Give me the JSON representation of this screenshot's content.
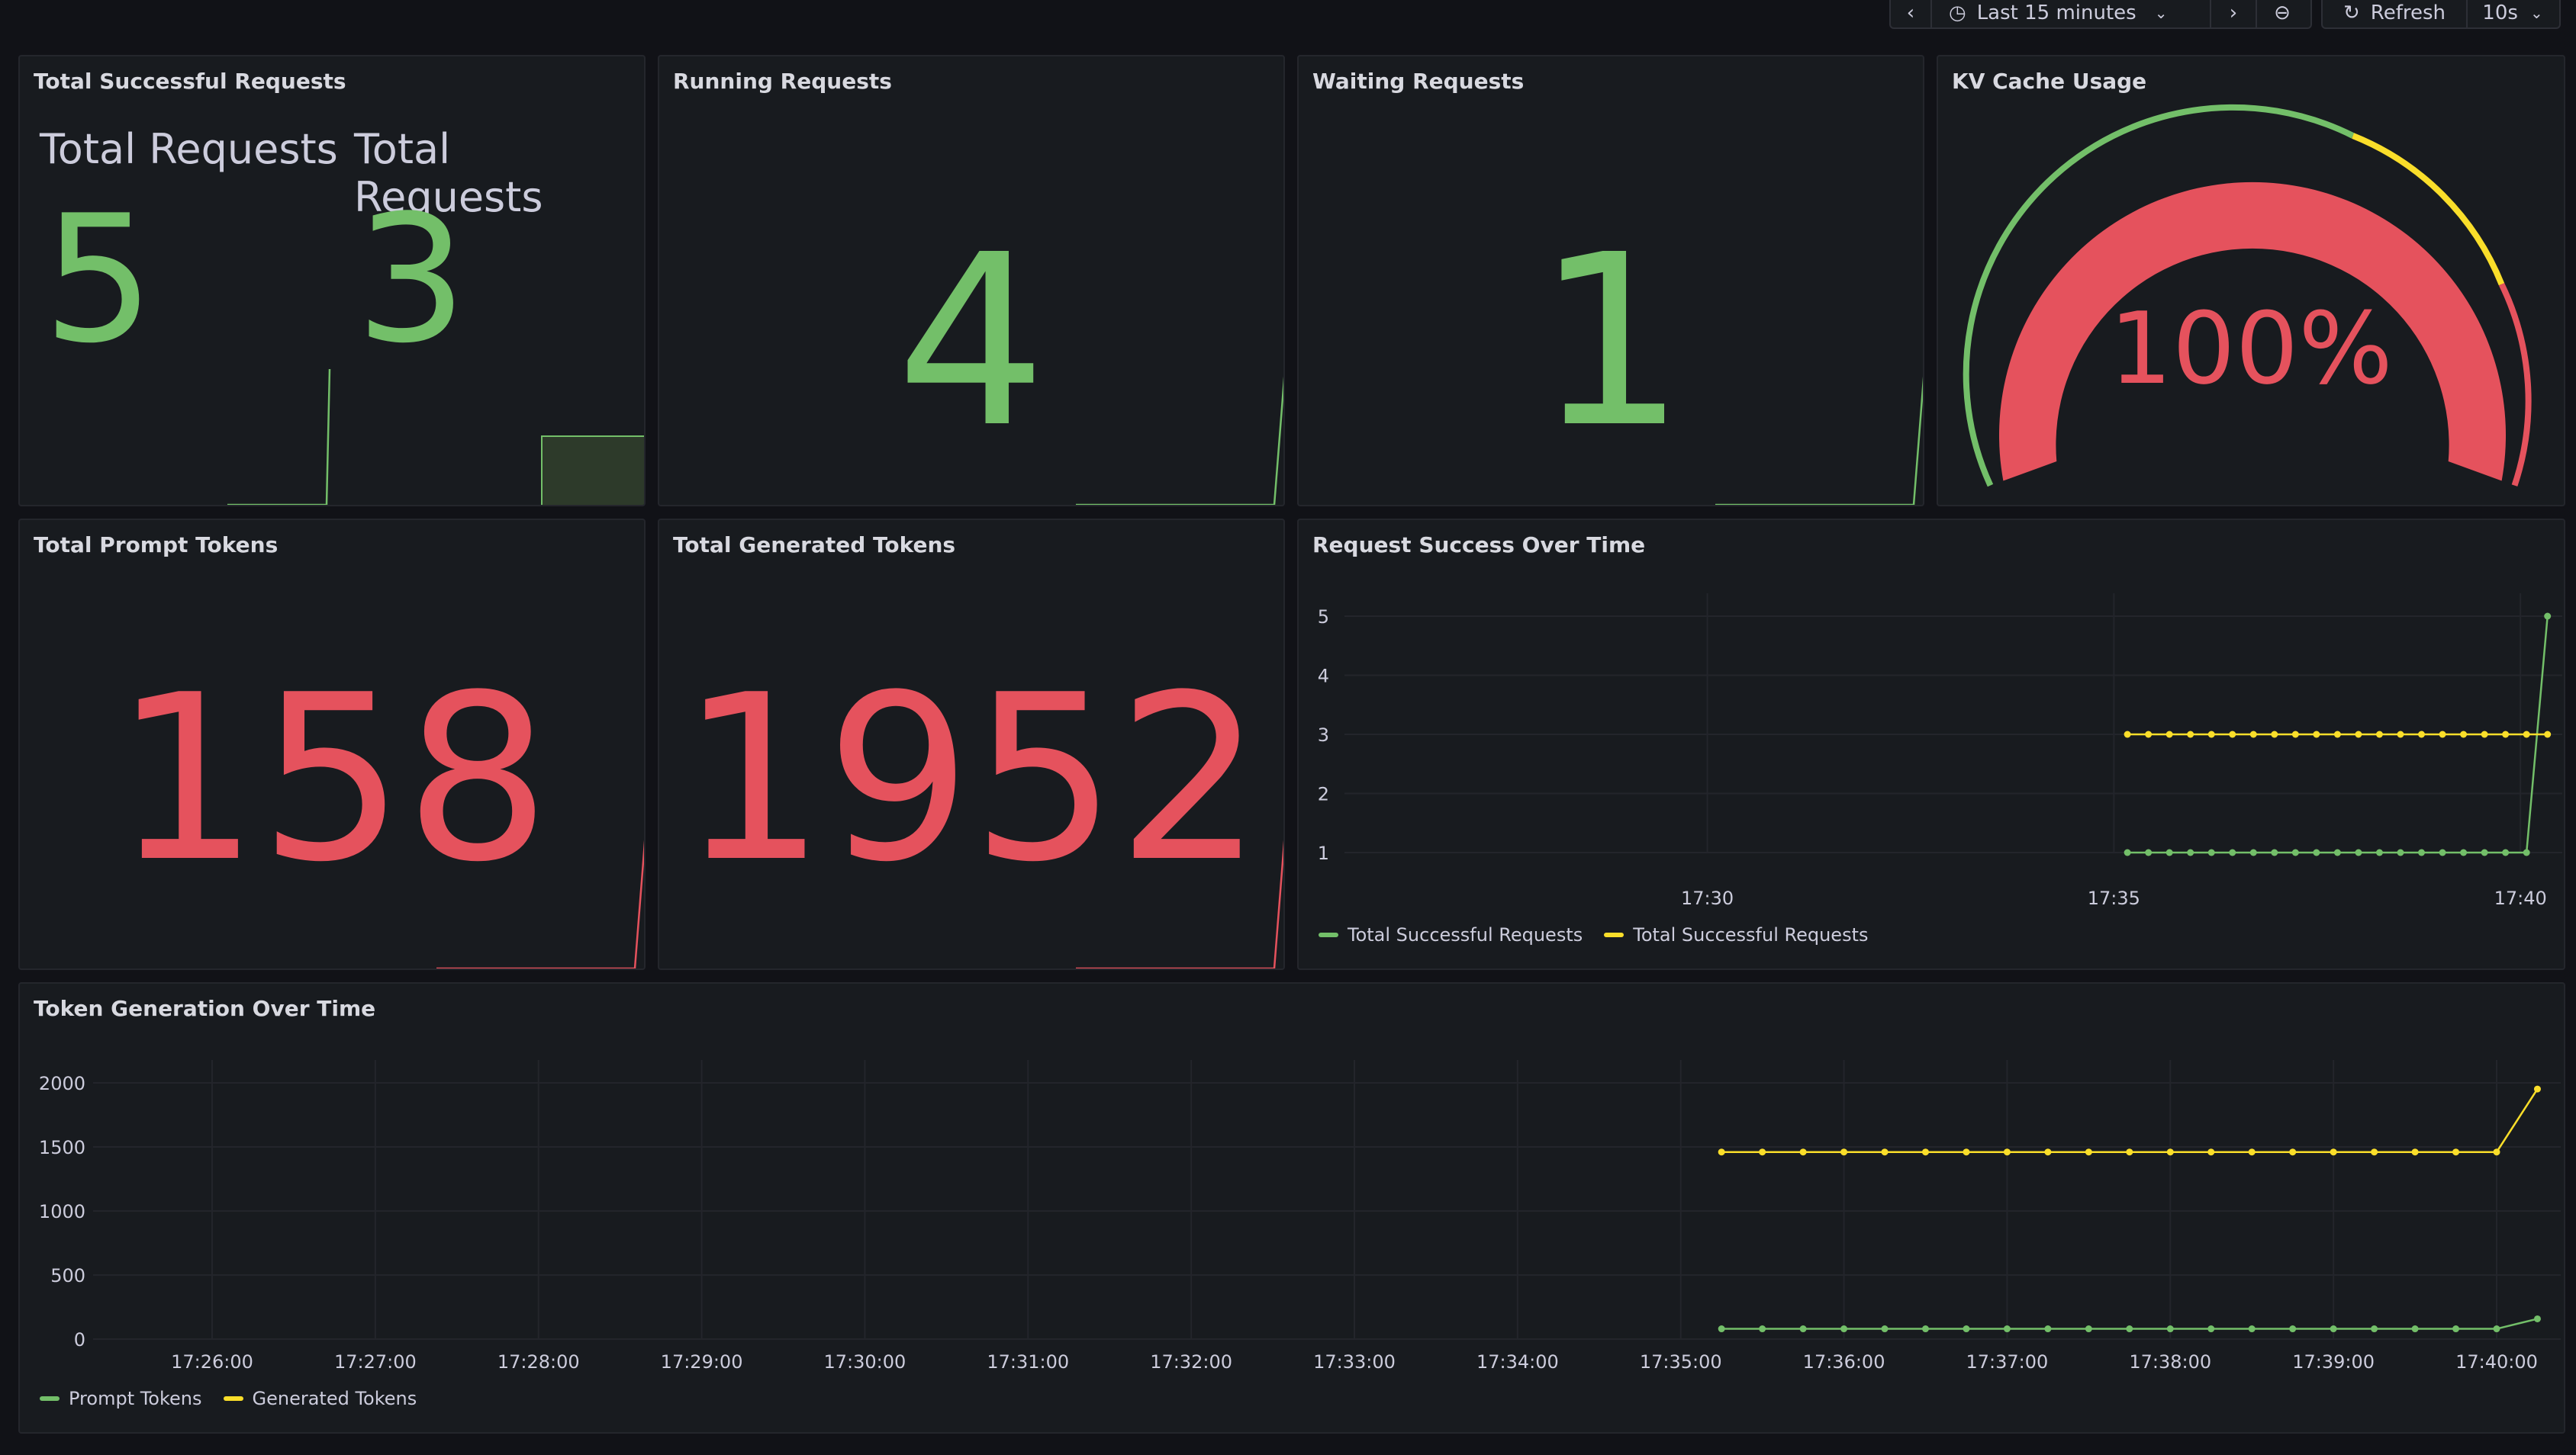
{
  "toolbar": {
    "time_range": "Last 15 minutes",
    "refresh_label": "Refresh",
    "refresh_interval": "10s",
    "icons": [
      "chevron-left-icon",
      "clock-icon",
      "chevron-down-icon",
      "chevron-right-icon",
      "zoom-out-icon",
      "refresh-icon",
      "chevron-down-icon"
    ]
  },
  "panels": {
    "total_successful": {
      "title": "Total Successful Requests",
      "labels": [
        "Total Requests",
        "Total Requests"
      ],
      "values": [
        "5",
        "3"
      ]
    },
    "running": {
      "title": "Running Requests",
      "value": "4"
    },
    "waiting": {
      "title": "Waiting Requests",
      "value": "1"
    },
    "kv_cache": {
      "title": "KV Cache Usage",
      "value": "100%",
      "percent": 100
    },
    "prompt_tokens": {
      "title": "Total Prompt Tokens",
      "value": "158"
    },
    "generated_tokens": {
      "title": "Total Generated Tokens",
      "value": "1952"
    },
    "request_success": {
      "title": "Request Success Over Time"
    },
    "token_generation": {
      "title": "Token Generation Over Time"
    }
  },
  "colors": {
    "green": "#73bf69",
    "yellow": "#fade2a",
    "red": "#e5525d",
    "bg": "#181b1f"
  },
  "chart_data": [
    {
      "type": "line",
      "title": "Request Success Over Time",
      "x_ticks": [
        "17:30",
        "17:35",
        "17:40"
      ],
      "y_ticks": [
        "1",
        "2",
        "3",
        "4",
        "5"
      ],
      "ylim": [
        1,
        5
      ],
      "series": [
        {
          "name": "Total Successful Requests",
          "color": "#73bf69",
          "values": [
            1,
            1,
            1,
            1,
            1,
            1,
            1,
            1,
            1,
            1,
            1,
            1,
            1,
            1,
            1,
            1,
            1,
            1,
            1,
            1,
            5
          ]
        },
        {
          "name": "Total Successful Requests",
          "color": "#fade2a",
          "values": [
            3,
            3,
            3,
            3,
            3,
            3,
            3,
            3,
            3,
            3,
            3,
            3,
            3,
            3,
            3,
            3,
            3,
            3,
            3,
            3,
            3
          ]
        }
      ],
      "time_start": "17:35:10",
      "time_end": "17:40:20"
    },
    {
      "type": "line",
      "title": "Token Generation Over Time",
      "x_ticks": [
        "17:26:00",
        "17:27:00",
        "17:28:00",
        "17:29:00",
        "17:30:00",
        "17:31:00",
        "17:32:00",
        "17:33:00",
        "17:34:00",
        "17:35:00",
        "17:36:00",
        "17:37:00",
        "17:38:00",
        "17:39:00",
        "17:40:00"
      ],
      "y_ticks": [
        "0",
        "500",
        "1000",
        "1500",
        "2000"
      ],
      "ylim": [
        0,
        2000
      ],
      "series": [
        {
          "name": "Prompt Tokens",
          "color": "#73bf69",
          "values": [
            80,
            80,
            80,
            80,
            80,
            80,
            80,
            80,
            80,
            80,
            80,
            80,
            80,
            80,
            80,
            80,
            80,
            80,
            80,
            80,
            158
          ]
        },
        {
          "name": "Generated Tokens",
          "color": "#fade2a",
          "values": [
            1460,
            1460,
            1460,
            1460,
            1460,
            1460,
            1460,
            1460,
            1460,
            1460,
            1460,
            1460,
            1460,
            1460,
            1460,
            1460,
            1460,
            1460,
            1460,
            1460,
            1952
          ]
        }
      ],
      "time_start": "17:35:15",
      "time_end": "17:40:15"
    }
  ]
}
